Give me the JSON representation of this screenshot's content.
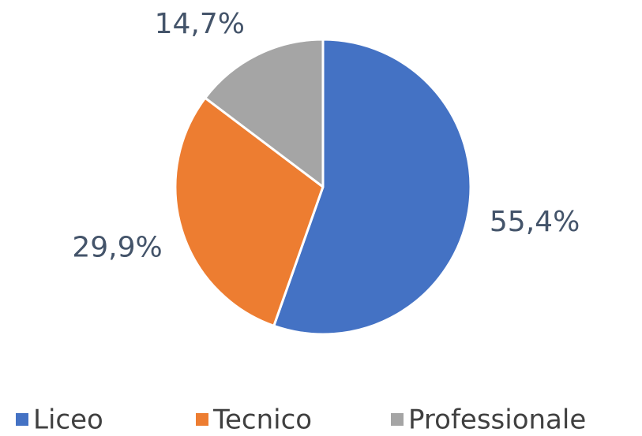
{
  "chart_data": {
    "type": "pie",
    "categories": [
      "Liceo",
      "Tecnico",
      "Professionale"
    ],
    "values": [
      55.4,
      29.9,
      14.7
    ],
    "value_labels": [
      "55,4%",
      "29,9%",
      "14,7%"
    ],
    "colors": [
      "#4472c4",
      "#ed7d31",
      "#a5a5a5"
    ],
    "legend": "bottom"
  }
}
